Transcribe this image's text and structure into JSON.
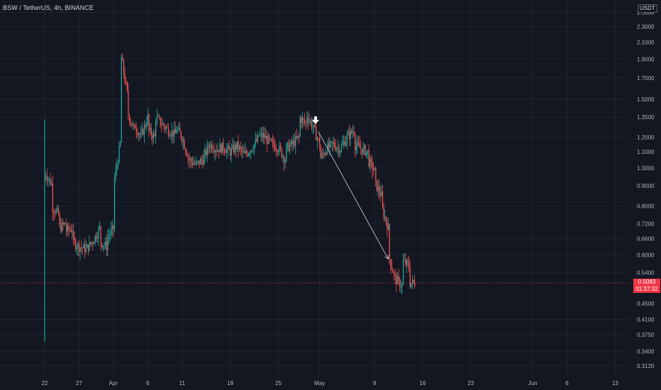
{
  "header": {
    "symbol": "BSW / TetherUS, 4h, BINANCE",
    "currency_badge": "USDT"
  },
  "last_price": {
    "price": "0.5083",
    "countdown": "01:37:32"
  },
  "colors": {
    "background": "#131722",
    "grid": "#1f2430",
    "up": "#26a69a",
    "down": "#ef5350",
    "price_line": "#f23645",
    "text": "#b2b5be",
    "arrow": "#d1d4dc"
  },
  "chart_data": {
    "type": "candlestick",
    "title": "",
    "y_scale": "log",
    "grid": true,
    "ylim": [
      0.3,
      2.6
    ],
    "y_ticks": [
      "0.3120",
      "0.3400",
      "0.3750",
      "0.4100",
      "0.4500",
      "0.5400",
      "0.6000",
      "0.6600",
      "0.7200",
      "0.8000",
      "0.9000",
      "1.0000",
      "1.1000",
      "1.2000",
      "1.3500",
      "1.5000",
      "1.7000",
      "1.9000",
      "2.1000",
      "2.3000",
      "2.5000"
    ],
    "x_ticks": [
      "22",
      "27",
      "Apr",
      "6",
      "11",
      "18",
      "25",
      "May",
      "9",
      "16",
      "23",
      "Jun",
      "6",
      "13"
    ],
    "x_tick_dates": [
      "2022-03-22",
      "2022-03-27",
      "2022-04-01",
      "2022-04-06",
      "2022-04-11",
      "2022-04-18",
      "2022-04-25",
      "2022-05-01",
      "2022-05-09",
      "2022-05-16",
      "2022-05-23",
      "2022-06-01",
      "2022-06-06",
      "2022-06-13"
    ],
    "xlim": [
      "2022-03-22",
      "2022-06-14"
    ],
    "price_path": [
      [
        "2022-03-22",
        0.95
      ],
      [
        "2022-03-22",
        1.33
      ],
      [
        "2022-03-22",
        0.36
      ],
      [
        "2022-03-22",
        0.98
      ],
      [
        "2022-03-23",
        0.91
      ],
      [
        "2022-03-23",
        0.8
      ],
      [
        "2022-03-24",
        0.76
      ],
      [
        "2022-03-24",
        0.7
      ],
      [
        "2022-03-25",
        0.72
      ],
      [
        "2022-03-25",
        0.69
      ],
      [
        "2022-03-26",
        0.7
      ],
      [
        "2022-03-26",
        0.65
      ],
      [
        "2022-03-27",
        0.63
      ],
      [
        "2022-03-28",
        0.62
      ],
      [
        "2022-03-28",
        0.62
      ],
      [
        "2022-03-29",
        0.65
      ],
      [
        "2022-03-30",
        0.7
      ],
      [
        "2022-03-30",
        0.65
      ],
      [
        "2022-03-31",
        0.63
      ],
      [
        "2022-03-31",
        0.66
      ],
      [
        "2022-04-01",
        0.7
      ],
      [
        "2022-04-01",
        0.9
      ],
      [
        "2022-04-02",
        1.15
      ],
      [
        "2022-04-02",
        1.5
      ],
      [
        "2022-04-02",
        2.0
      ],
      [
        "2022-04-03",
        1.55
      ],
      [
        "2022-04-03",
        1.4
      ],
      [
        "2022-04-04",
        1.25
      ],
      [
        "2022-04-04",
        1.3
      ],
      [
        "2022-04-05",
        1.2
      ],
      [
        "2022-04-06",
        1.35
      ],
      [
        "2022-04-06",
        1.25
      ],
      [
        "2022-04-07",
        1.2
      ],
      [
        "2022-04-07",
        1.35
      ],
      [
        "2022-04-08",
        1.3
      ],
      [
        "2022-04-09",
        1.25
      ],
      [
        "2022-04-10",
        1.22
      ],
      [
        "2022-04-10",
        1.27
      ],
      [
        "2022-04-11",
        1.2
      ],
      [
        "2022-04-12",
        1.05
      ],
      [
        "2022-04-13",
        1.02
      ],
      [
        "2022-04-14",
        1.05
      ],
      [
        "2022-04-15",
        1.15
      ],
      [
        "2022-04-16",
        1.12
      ],
      [
        "2022-04-17",
        1.13
      ],
      [
        "2022-04-18",
        1.1
      ],
      [
        "2022-04-19",
        1.14
      ],
      [
        "2022-04-20",
        1.08
      ],
      [
        "2022-04-21",
        1.12
      ],
      [
        "2022-04-22",
        1.18
      ],
      [
        "2022-04-22",
        1.22
      ],
      [
        "2022-04-23",
        1.2
      ],
      [
        "2022-04-24",
        1.15
      ],
      [
        "2022-04-25",
        1.13
      ],
      [
        "2022-04-26",
        1.05
      ],
      [
        "2022-04-26",
        1.12
      ],
      [
        "2022-04-27",
        1.15
      ],
      [
        "2022-04-28",
        1.2
      ],
      [
        "2022-04-28",
        1.35
      ],
      [
        "2022-04-29",
        1.3
      ],
      [
        "2022-04-29",
        1.38
      ],
      [
        "2022-04-30",
        1.28
      ],
      [
        "2022-05-01",
        1.15
      ],
      [
        "2022-05-01",
        1.05
      ],
      [
        "2022-05-02",
        1.12
      ],
      [
        "2022-05-03",
        1.15
      ],
      [
        "2022-05-04",
        1.12
      ],
      [
        "2022-05-05",
        1.2
      ],
      [
        "2022-05-06",
        1.25
      ],
      [
        "2022-05-06",
        1.15
      ],
      [
        "2022-05-07",
        1.12
      ],
      [
        "2022-05-08",
        1.1
      ],
      [
        "2022-05-08",
        1.05
      ],
      [
        "2022-05-09",
        0.98
      ],
      [
        "2022-05-09",
        0.92
      ],
      [
        "2022-05-10",
        0.85
      ],
      [
        "2022-05-10",
        0.8
      ],
      [
        "2022-05-11",
        0.7
      ],
      [
        "2022-05-11",
        0.6
      ],
      [
        "2022-05-12",
        0.52
      ],
      [
        "2022-05-12",
        0.47
      ],
      [
        "2022-05-12",
        0.52
      ],
      [
        "2022-05-13",
        0.5
      ],
      [
        "2022-05-13",
        0.58
      ],
      [
        "2022-05-14",
        0.56
      ],
      [
        "2022-05-14",
        0.5083
      ]
    ],
    "annotations": {
      "arrow": {
        "from": [
          "2022-05-01",
          1.24
        ],
        "to": [
          "2022-05-11",
          0.585
        ]
      },
      "down_marker": {
        "at": [
          "2022-04-30",
          1.3
        ],
        "icon": "down-arrow-icon"
      },
      "last_price_line": 0.5083
    }
  }
}
